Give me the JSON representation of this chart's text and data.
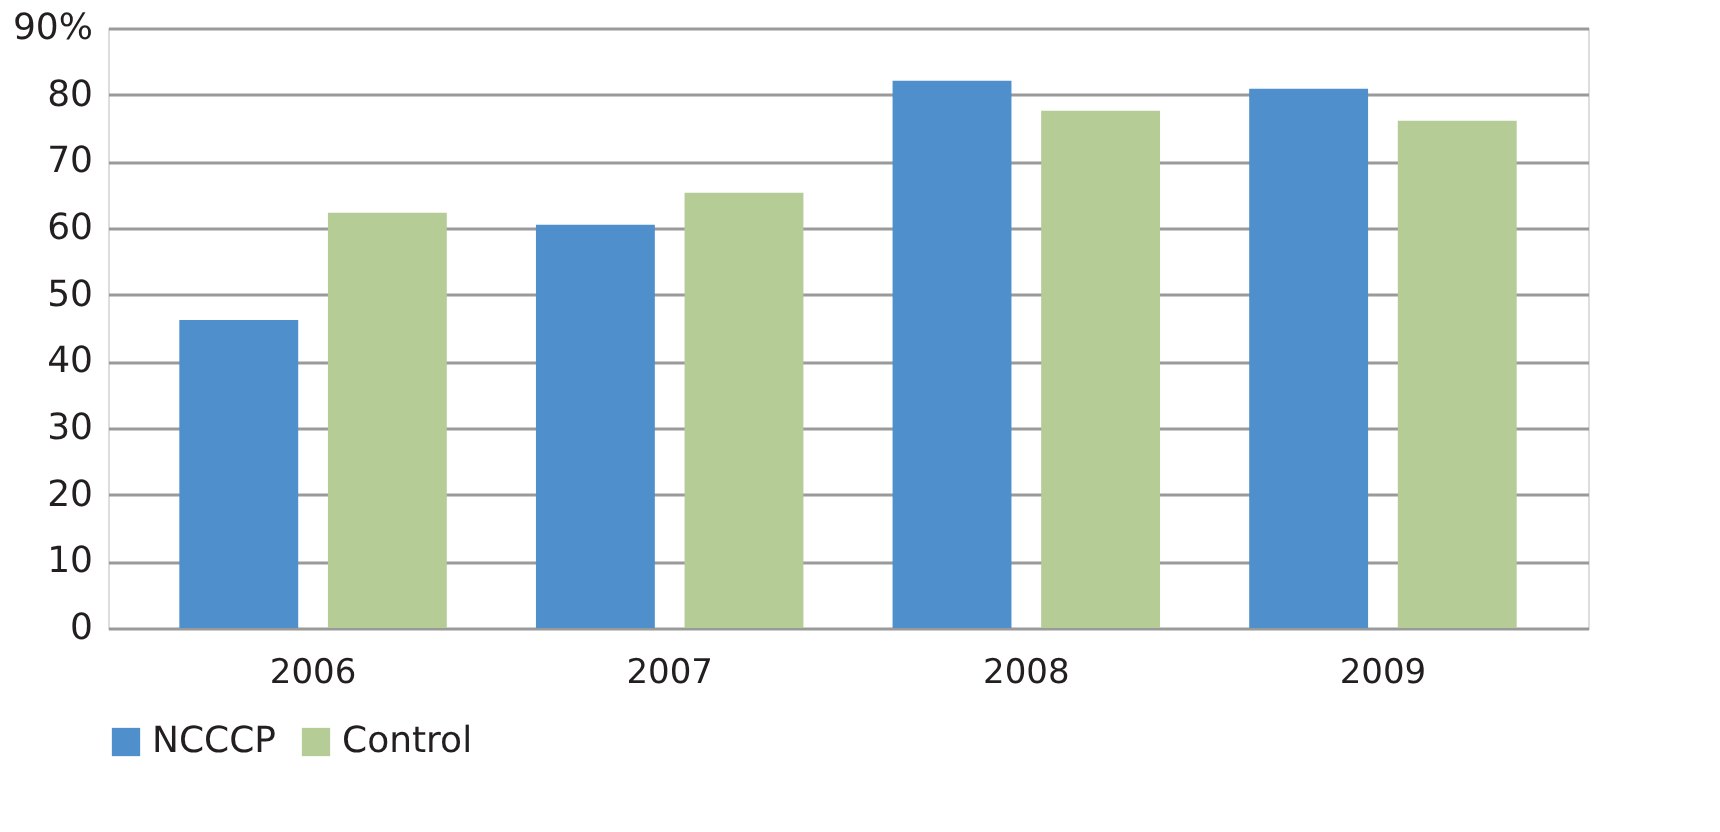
{
  "chart_data": {
    "type": "bar",
    "categories": [
      "2006",
      "2007",
      "2008",
      "2009"
    ],
    "series": [
      {
        "name": "NCCCP",
        "color": "#4f8fcc",
        "values": [
          46.2,
          60.5,
          82.1,
          80.9
        ]
      },
      {
        "name": "Control",
        "color": "#b5cc97",
        "values": [
          62.3,
          65.3,
          77.6,
          76.1
        ]
      }
    ],
    "ylim": [
      0,
      90
    ],
    "yticks": [
      0,
      10,
      20,
      30,
      40,
      50,
      60,
      70,
      80,
      {
        "value": 90,
        "label": "90%"
      }
    ],
    "grid": "y",
    "legend": "bottom"
  }
}
